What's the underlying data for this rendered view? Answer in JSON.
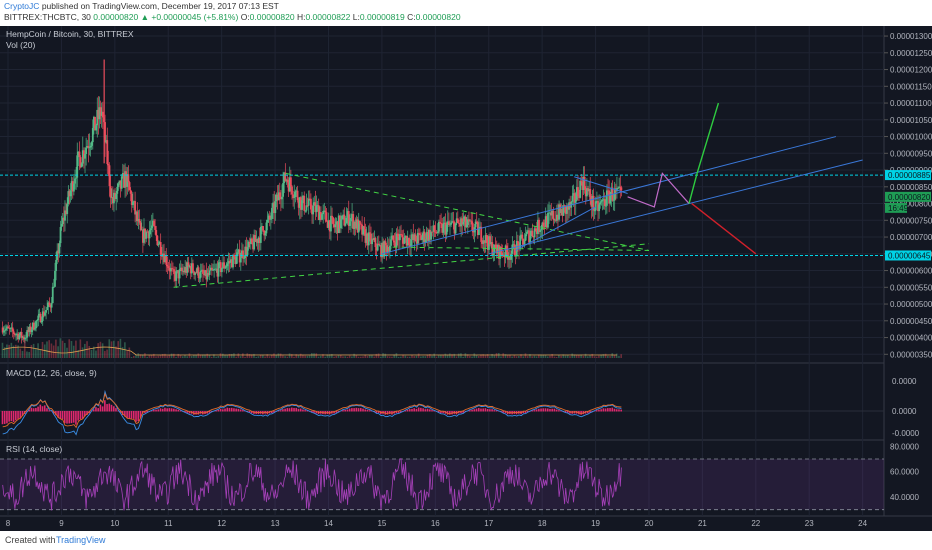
{
  "header": {
    "author": "CryptoJC",
    "published": "published on TradingView.com, December 19, 2017 07:13 EST",
    "symbol": "BITTREX:THCBTC, 30",
    "last": "0.00000820",
    "change": "▲ +0.00000045 (+5.81%)",
    "o_label": "O:",
    "o": "0.00000820",
    "h_label": "H:",
    "h": "0.00000822",
    "l_label": "L:",
    "l": "0.00000819",
    "c_label": "C:",
    "c": "0.00000820"
  },
  "panes": {
    "main_title": "HempCoin / Bitcoin, 30, BITTREX",
    "vol_title": "Vol (20)",
    "macd_title": "MACD (12, 26, close, 9)",
    "rsi_title": "RSI (14, close)"
  },
  "footer": {
    "created": "Created with",
    "brand": "TradingView"
  },
  "colors": {
    "bg": "#131722",
    "up": "#53b987",
    "down": "#eb4d5c",
    "cyan": "#00d3e6",
    "blue": "#3a78d9",
    "green_dash": "#42d645",
    "rsi": "#a540b8",
    "macd_hist": "#e0286f"
  },
  "chart_data": [
    {
      "type": "candlestick",
      "title": "HempCoin / Bitcoin, 30, BITTREX",
      "x_ticks": [
        "8",
        "9",
        "10",
        "11",
        "12",
        "13",
        "14",
        "15",
        "16",
        "17",
        "18",
        "19",
        "20",
        "21",
        "22",
        "23",
        "24"
      ],
      "y_ticks": [
        "0.00001300",
        "0.00001250",
        "0.00001200",
        "0.00001150",
        "0.00001100",
        "0.00001050",
        "0.00001000",
        "0.00000950",
        "0.00000900",
        "0.00000850",
        "0.00000800",
        "0.00000750",
        "0.00000700",
        "0.00000650",
        "0.00000600",
        "0.00000550",
        "0.00000500",
        "0.00000450",
        "0.00000400",
        "0.00000350"
      ],
      "ylim": [
        3.3e-06,
        1.33e-05
      ],
      "x_range": [
        7.85,
        24.4
      ],
      "price_path": [
        [
          7.9,
          4.3e-06
        ],
        [
          8.3,
          4e-06
        ],
        [
          8.8,
          5e-06
        ],
        [
          9.0,
          7.3e-06
        ],
        [
          9.3,
          9.2e-06
        ],
        [
          9.55,
          1e-05
        ],
        [
          9.75,
          1.08e-05
        ],
        [
          9.95,
          8e-06
        ],
        [
          10.2,
          8.8e-06
        ],
        [
          10.5,
          7e-06
        ],
        [
          10.7,
          7.3e-06
        ],
        [
          11.1,
          5.8e-06
        ],
        [
          11.4,
          6.1e-06
        ],
        [
          11.7,
          5.8e-06
        ],
        [
          12.0,
          6.1e-06
        ],
        [
          12.3,
          6.4e-06
        ],
        [
          12.6,
          6.8e-06
        ],
        [
          12.9,
          7.5e-06
        ],
        [
          13.2,
          8.8e-06
        ],
        [
          13.5,
          8e-06
        ],
        [
          13.8,
          7.8e-06
        ],
        [
          14.1,
          7.3e-06
        ],
        [
          14.4,
          7.6e-06
        ],
        [
          14.7,
          7e-06
        ],
        [
          15.0,
          6.6e-06
        ],
        [
          15.3,
          7e-06
        ],
        [
          15.6,
          6.9e-06
        ],
        [
          15.9,
          7.1e-06
        ],
        [
          16.2,
          7.3e-06
        ],
        [
          16.5,
          7.4e-06
        ],
        [
          16.8,
          7.2e-06
        ],
        [
          17.1,
          6.6e-06
        ],
        [
          17.4,
          6.5e-06
        ],
        [
          17.7,
          7e-06
        ],
        [
          18.0,
          7.4e-06
        ],
        [
          18.3,
          7.7e-06
        ],
        [
          18.55,
          7.9e-06
        ],
        [
          18.75,
          8.7e-06
        ],
        [
          19.0,
          7.8e-06
        ],
        [
          19.3,
          8.3e-06
        ],
        [
          19.5,
          8.2e-06
        ]
      ],
      "price_tags": [
        "0.00000885",
        "0.00000820",
        "0.00000645"
      ],
      "timer_tag": "16:49",
      "levels": [
        8.85e-06,
        6.45e-06
      ]
    },
    {
      "type": "line",
      "title": "MACD (12, 26, close, 9)",
      "y_ticks": [
        "0.0000",
        "0.0000",
        "-0.0000"
      ]
    },
    {
      "type": "line",
      "title": "RSI (14, close)",
      "y_ticks": [
        "80.0000",
        "60.0000",
        "40.0000"
      ],
      "ylim": [
        25,
        85
      ],
      "bands": [
        70,
        30
      ]
    }
  ]
}
